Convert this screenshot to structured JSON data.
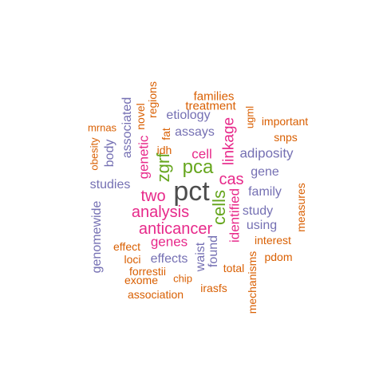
{
  "palette": {
    "dark_gray": "#4d4d4d",
    "green": "#66a61e",
    "magenta": "#e7298a",
    "purple": "#7570b3",
    "orange": "#d95f02"
  },
  "words": [
    {
      "text": "pct",
      "color": "dark_gray"
    },
    {
      "text": "pca",
      "color": "green"
    },
    {
      "text": "zgrf",
      "color": "green"
    },
    {
      "text": "cells",
      "color": "green"
    },
    {
      "text": "analysis",
      "color": "magenta"
    },
    {
      "text": "anticancer",
      "color": "magenta"
    },
    {
      "text": "two",
      "color": "magenta"
    },
    {
      "text": "cas",
      "color": "magenta"
    },
    {
      "text": "linkage",
      "color": "magenta"
    },
    {
      "text": "cell",
      "color": "magenta"
    },
    {
      "text": "genes",
      "color": "magenta"
    },
    {
      "text": "genetic",
      "color": "magenta"
    },
    {
      "text": "identified",
      "color": "magenta"
    },
    {
      "text": "adiposity",
      "color": "purple"
    },
    {
      "text": "gene",
      "color": "purple"
    },
    {
      "text": "family",
      "color": "purple"
    },
    {
      "text": "study",
      "color": "purple"
    },
    {
      "text": "using",
      "color": "purple"
    },
    {
      "text": "studies",
      "color": "purple"
    },
    {
      "text": "body",
      "color": "purple"
    },
    {
      "text": "associated",
      "color": "purple"
    },
    {
      "text": "etiology",
      "color": "purple"
    },
    {
      "text": "assays",
      "color": "purple"
    },
    {
      "text": "genomewide",
      "color": "purple"
    },
    {
      "text": "effects",
      "color": "purple"
    },
    {
      "text": "waist",
      "color": "purple"
    },
    {
      "text": "found",
      "color": "purple"
    },
    {
      "text": "families",
      "color": "orange"
    },
    {
      "text": "treatment",
      "color": "orange"
    },
    {
      "text": "regions",
      "color": "orange"
    },
    {
      "text": "novel",
      "color": "orange"
    },
    {
      "text": "fat",
      "color": "orange"
    },
    {
      "text": "idh",
      "color": "orange"
    },
    {
      "text": "mrnas",
      "color": "orange"
    },
    {
      "text": "obesity",
      "color": "orange"
    },
    {
      "text": "ugml",
      "color": "orange"
    },
    {
      "text": "important",
      "color": "orange"
    },
    {
      "text": "snps",
      "color": "orange"
    },
    {
      "text": "measures",
      "color": "orange"
    },
    {
      "text": "interest",
      "color": "orange"
    },
    {
      "text": "pdom",
      "color": "orange"
    },
    {
      "text": "effect",
      "color": "orange"
    },
    {
      "text": "loci",
      "color": "orange"
    },
    {
      "text": "forrestii",
      "color": "orange"
    },
    {
      "text": "exome",
      "color": "orange"
    },
    {
      "text": "chip",
      "color": "orange"
    },
    {
      "text": "association",
      "color": "orange"
    },
    {
      "text": "irasfs",
      "color": "orange"
    },
    {
      "text": "total",
      "color": "orange"
    },
    {
      "text": "mechanisms",
      "color": "orange"
    }
  ]
}
